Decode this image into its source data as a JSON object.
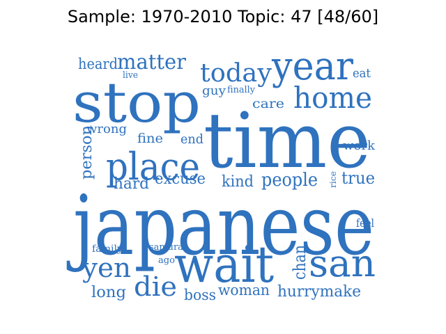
{
  "title": "Sample: 1970-2010 Topic: 47 [48/60]",
  "word_color": "#2f72be",
  "words": [
    "japanese",
    "time",
    "stop",
    "wait",
    "place",
    "year",
    "san",
    "home",
    "today",
    "yen",
    "die",
    "matter",
    "people",
    "hurrymake",
    "true",
    "kind",
    "excuse",
    "hard",
    "woman",
    "boss",
    "long",
    "chan",
    "person",
    "heard",
    "fine",
    "end",
    "work",
    "care",
    "guy",
    "wrong",
    "feel",
    "eat",
    "finally",
    "live",
    "family",
    "samurai",
    "ago",
    "rice"
  ]
}
